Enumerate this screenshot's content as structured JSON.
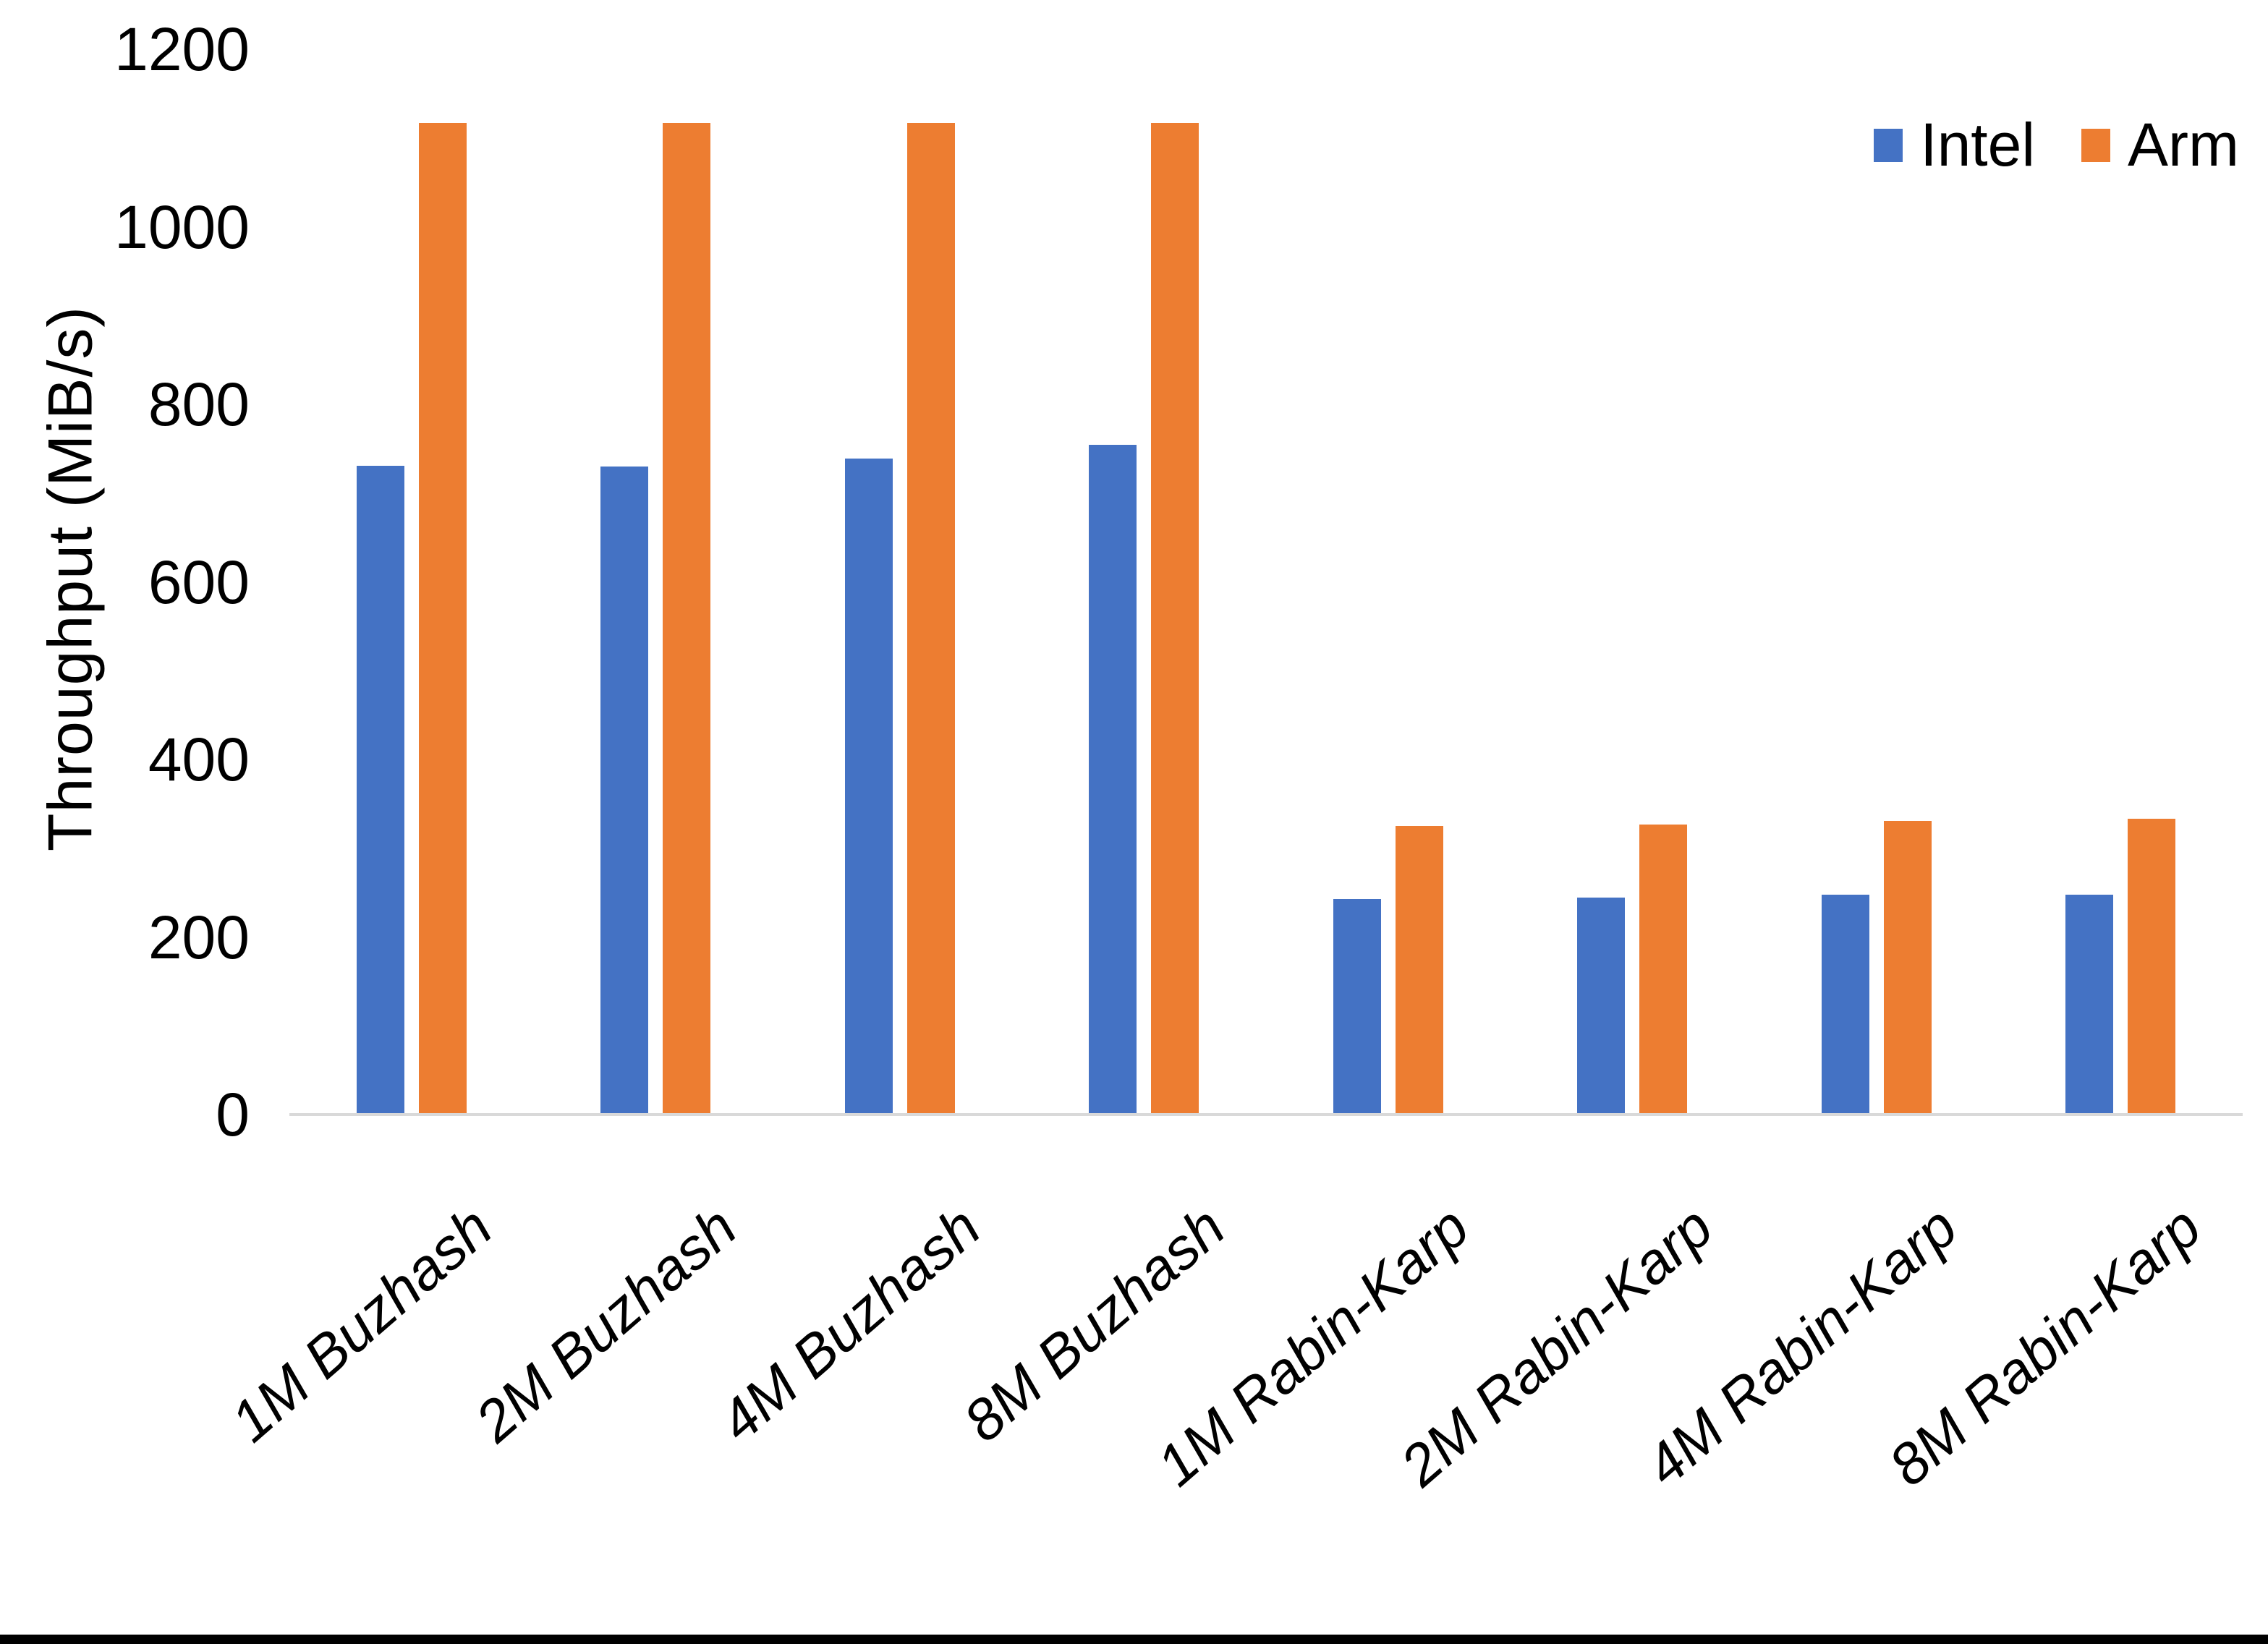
{
  "page": {
    "background": "#ffffff",
    "bottom_border_color": "#000000"
  },
  "chart_data": {
    "type": "bar",
    "title": "",
    "xlabel": "",
    "ylabel": "Throughput (MiB/s)",
    "ylim": [
      0,
      1200
    ],
    "yticks": [
      0,
      200,
      400,
      600,
      800,
      1000,
      1200
    ],
    "grid": false,
    "legend_position": "top-right",
    "axis_line_color": "#D9D9D9",
    "categories": [
      "1M Buzhash",
      "2M Buzhash",
      "4M Buzhash",
      "8M Buzhash",
      "1M Rabin-Karp",
      "2M Rabin-Karp",
      "4M Rabin-Karp",
      "8M Rabin-Karp"
    ],
    "series": [
      {
        "name": "Intel",
        "color": "#4472C4",
        "values": [
          731,
          730,
          739,
          754,
          243,
          244,
          248,
          248
        ]
      },
      {
        "name": "Arm",
        "color": "#ED7D31",
        "values": [
          1117,
          1117,
          1117,
          1117,
          325,
          327,
          331,
          333
        ]
      }
    ]
  }
}
